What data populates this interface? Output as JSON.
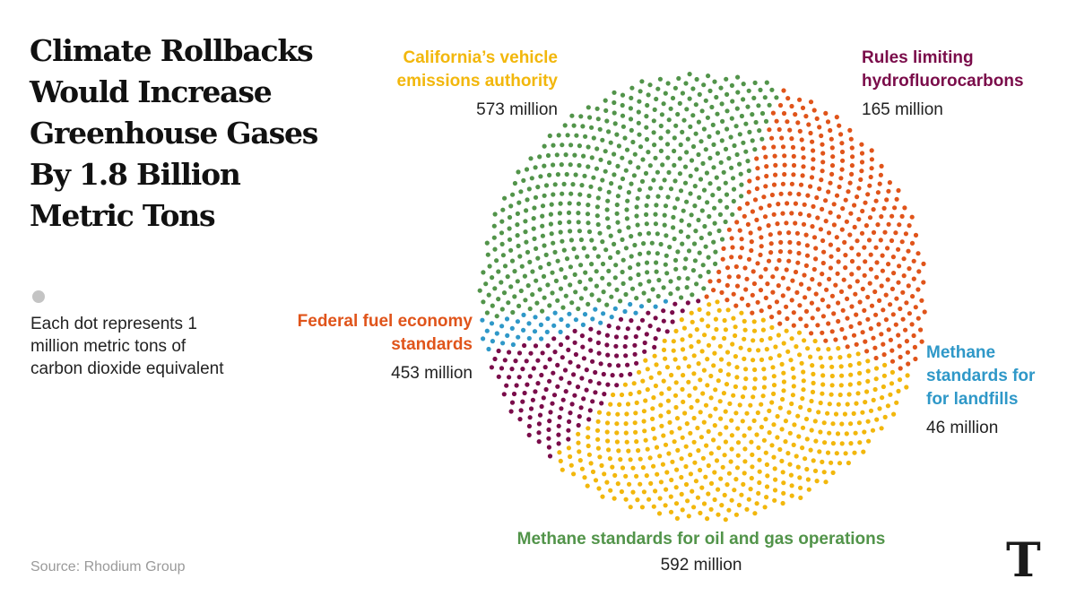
{
  "title": "Climate Rollbacks Would Increase Greenhouse Gases By 1.8 Billion Metric Tons",
  "legend": {
    "text": "Each dot represents 1 million metric tons of carbon dioxide equivalent"
  },
  "source": "Source: Rhodium Group",
  "logo": "T",
  "chart_data": {
    "type": "dot-pie",
    "title": "Climate Rollbacks Would Increase Greenhouse Gases By 1.8 Billion Metric Tons",
    "unit_note": "Each dot represents 1 million metric tons of carbon dioxide equivalent",
    "series": [
      {
        "name": "California’s vehicle emissions authority",
        "value": 573,
        "label": "573 million",
        "color": "#f2b70c"
      },
      {
        "name": "Rules limiting hydrofluorocarbons",
        "value": 165,
        "label": "165 million",
        "color": "#7a0c4a"
      },
      {
        "name": "Methane standards for for landfills",
        "value": 46,
        "label": "46 million",
        "color": "#2f98c8"
      },
      {
        "name": "Methane standards for oil and gas operations",
        "value": 592,
        "label": "592 million",
        "color": "#52944a"
      },
      {
        "name": "Federal fuel economy standards",
        "value": 453,
        "label": "453 million",
        "color": "#e0541a"
      }
    ]
  }
}
